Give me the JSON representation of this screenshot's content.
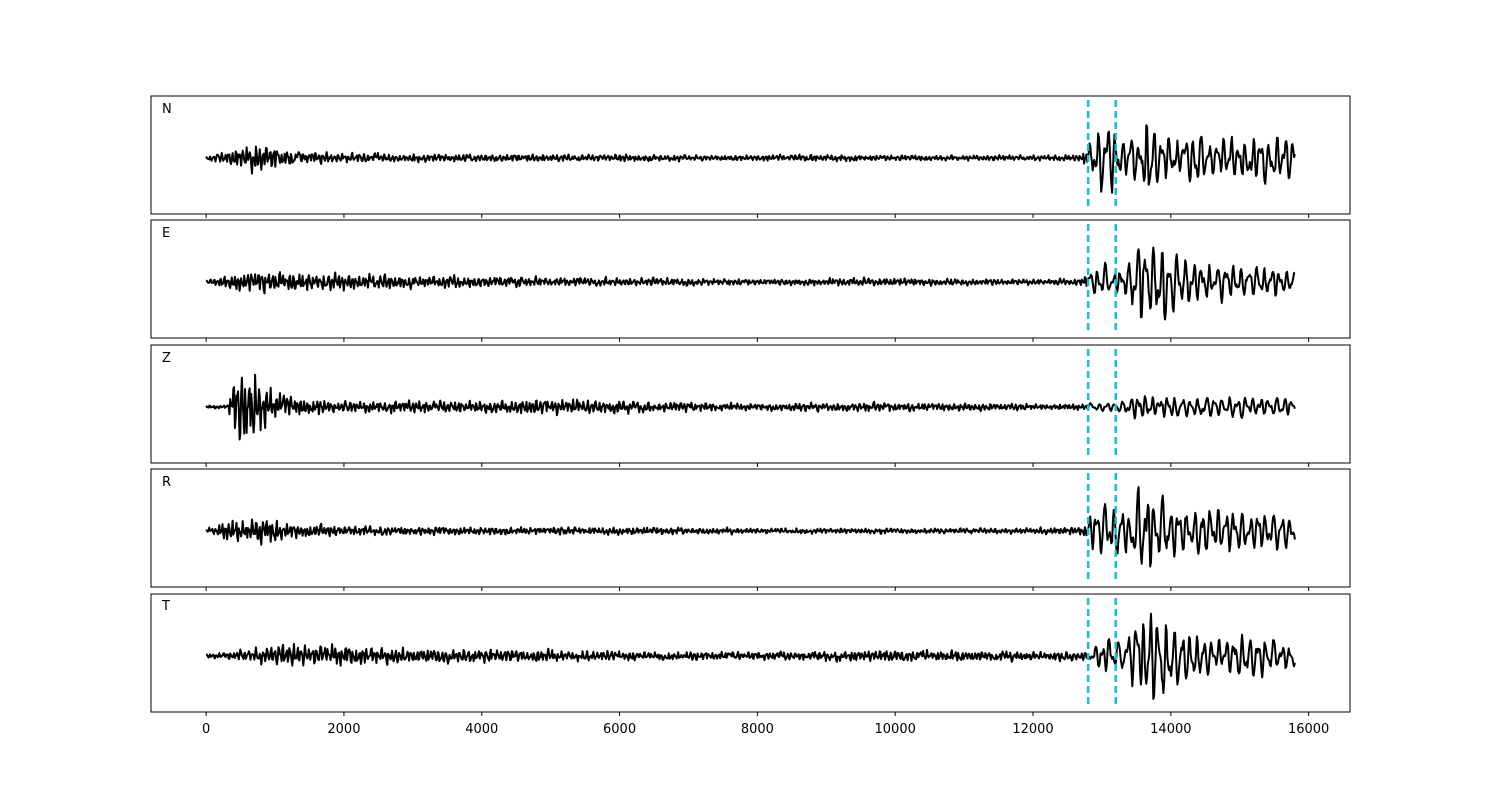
{
  "chart_data": {
    "type": "line",
    "shared_x_axis": {
      "xlim": [
        -800,
        16600
      ],
      "ticks": [
        0,
        2000,
        4000,
        6000,
        8000,
        10000,
        12000,
        14000,
        16000
      ],
      "tick_labels": [
        "0",
        "2000",
        "4000",
        "6000",
        "8000",
        "10000",
        "12000",
        "14000",
        "16000"
      ]
    },
    "signal_x_range": [
      0,
      15800
    ],
    "marker_lines": {
      "x": [
        12800,
        13200
      ],
      "color": "#17becf",
      "style": "dashed"
    },
    "trace_color": "#000000",
    "ylim": [
      -1.15,
      1.15
    ],
    "grid": false,
    "panels": [
      {
        "label": "N",
        "envelope": [
          [
            0,
            0.05
          ],
          [
            400,
            0.25
          ],
          [
            800,
            0.4
          ],
          [
            1200,
            0.2
          ],
          [
            2000,
            0.12
          ],
          [
            4000,
            0.1
          ],
          [
            6000,
            0.09
          ],
          [
            8000,
            0.07
          ],
          [
            9000,
            0.09
          ],
          [
            10000,
            0.07
          ],
          [
            12000,
            0.07
          ],
          [
            12700,
            0.08
          ],
          [
            12900,
            0.55
          ],
          [
            13100,
            0.75
          ],
          [
            13300,
            0.3
          ],
          [
            13550,
            0.5
          ],
          [
            13650,
            1.0
          ],
          [
            13800,
            0.55
          ],
          [
            14000,
            0.4
          ],
          [
            14400,
            0.5
          ],
          [
            14800,
            0.4
          ],
          [
            15200,
            0.45
          ],
          [
            15800,
            0.4
          ]
        ]
      },
      {
        "label": "E",
        "envelope": [
          [
            0,
            0.05
          ],
          [
            400,
            0.22
          ],
          [
            800,
            0.25
          ],
          [
            2000,
            0.2
          ],
          [
            3000,
            0.17
          ],
          [
            5000,
            0.12
          ],
          [
            8000,
            0.08
          ],
          [
            10000,
            0.1
          ],
          [
            12000,
            0.07
          ],
          [
            12700,
            0.1
          ],
          [
            13000,
            0.35
          ],
          [
            13200,
            0.25
          ],
          [
            13400,
            0.4
          ],
          [
            13550,
            1.0
          ],
          [
            13700,
            0.6
          ],
          [
            13850,
            0.9
          ],
          [
            14100,
            0.5
          ],
          [
            14600,
            0.35
          ],
          [
            15200,
            0.3
          ],
          [
            15800,
            0.25
          ]
        ]
      },
      {
        "label": "Z",
        "envelope": [
          [
            0,
            0.04
          ],
          [
            300,
            0.05
          ],
          [
            450,
            1.0
          ],
          [
            700,
            1.0
          ],
          [
            900,
            0.5
          ],
          [
            1200,
            0.25
          ],
          [
            2000,
            0.15
          ],
          [
            4000,
            0.15
          ],
          [
            5000,
            0.22
          ],
          [
            6000,
            0.15
          ],
          [
            8000,
            0.1
          ],
          [
            10000,
            0.12
          ],
          [
            12000,
            0.08
          ],
          [
            13200,
            0.08
          ],
          [
            13500,
            0.25
          ],
          [
            14000,
            0.2
          ],
          [
            15800,
            0.2
          ]
        ]
      },
      {
        "label": "R",
        "envelope": [
          [
            0,
            0.05
          ],
          [
            400,
            0.3
          ],
          [
            800,
            0.35
          ],
          [
            1200,
            0.2
          ],
          [
            2000,
            0.12
          ],
          [
            4000,
            0.1
          ],
          [
            6000,
            0.1
          ],
          [
            8000,
            0.07
          ],
          [
            10000,
            0.07
          ],
          [
            12000,
            0.07
          ],
          [
            12700,
            0.1
          ],
          [
            12950,
            0.6
          ],
          [
            13150,
            0.55
          ],
          [
            13400,
            0.45
          ],
          [
            13600,
            1.0
          ],
          [
            13800,
            0.6
          ],
          [
            14100,
            0.45
          ],
          [
            14500,
            0.45
          ],
          [
            15200,
            0.4
          ],
          [
            15800,
            0.35
          ]
        ]
      },
      {
        "label": "T",
        "envelope": [
          [
            0,
            0.05
          ],
          [
            800,
            0.2
          ],
          [
            1200,
            0.3
          ],
          [
            2000,
            0.25
          ],
          [
            3000,
            0.2
          ],
          [
            5000,
            0.15
          ],
          [
            6000,
            0.12
          ],
          [
            8000,
            0.1
          ],
          [
            10000,
            0.15
          ],
          [
            12000,
            0.12
          ],
          [
            12800,
            0.15
          ],
          [
            13100,
            0.35
          ],
          [
            13300,
            0.3
          ],
          [
            13500,
            0.8
          ],
          [
            13650,
            1.0
          ],
          [
            13900,
            0.8
          ],
          [
            14200,
            0.5
          ],
          [
            14600,
            0.4
          ],
          [
            15200,
            0.4
          ],
          [
            15800,
            0.25
          ]
        ]
      }
    ]
  }
}
